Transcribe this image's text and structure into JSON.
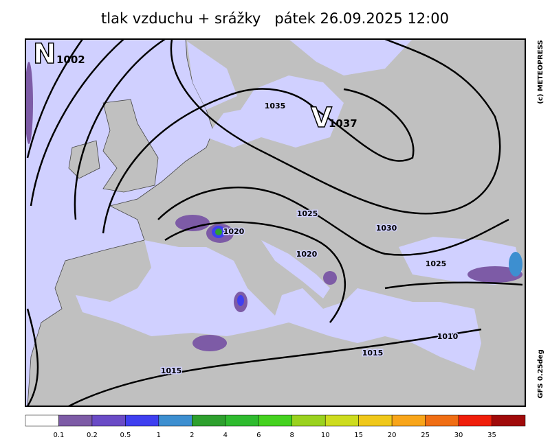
{
  "header": {
    "title": "tlak vzduchu + srážky   pátek 26.09.2025 12:00"
  },
  "map": {
    "centers": [
      {
        "letter": "N",
        "value": "1002"
      },
      {
        "letter": "V",
        "value": "1037"
      }
    ],
    "isobar_labels": [
      "1035",
      "1025",
      "1030",
      "1020",
      "1020",
      "1025",
      "1015",
      "1010",
      "1015"
    ]
  },
  "credits": [
    "(c) METEOPRESS",
    "GFS 0.25deg"
  ],
  "legend": {
    "colors": [
      "#ffffff",
      "#7d5ba6",
      "#6a4bc6",
      "#3f3ff0",
      "#3d8fd0",
      "#2ea02e",
      "#2fbb2f",
      "#45d21f",
      "#9ad21e",
      "#cddc1e",
      "#f0c81a",
      "#f8a51a",
      "#f06e14",
      "#f01e0a",
      "#a00a0a"
    ],
    "labels": [
      "0.1",
      "0.2",
      "0.5",
      "1",
      "2",
      "4",
      "6",
      "8",
      "10",
      "15",
      "20",
      "25",
      "30",
      "35"
    ]
  }
}
